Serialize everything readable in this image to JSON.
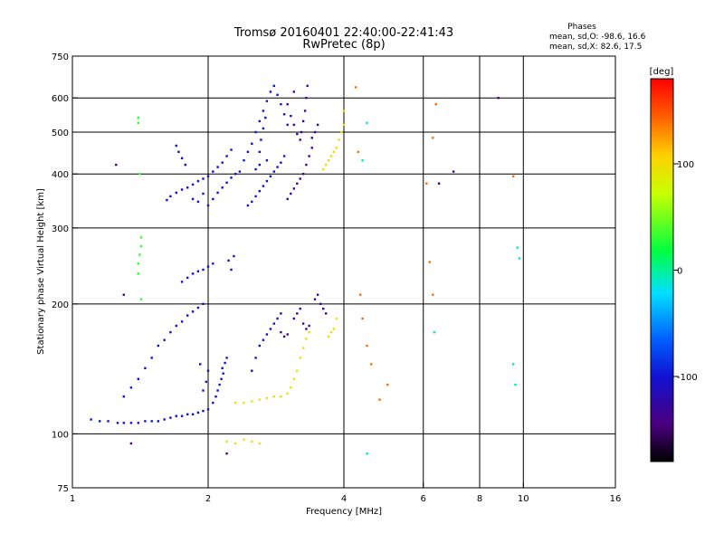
{
  "chart_data": {
    "type": "scatter",
    "title": "Tromsø 20160401 22:40:00-22:41:43",
    "subtitle": "RwPretec (8p)",
    "xlabel": "Frequency [MHz]",
    "ylabel": "Stationary phase Virtual Height [km]",
    "x_scale": "log",
    "y_scale": "log",
    "xlim": [
      1,
      16
    ],
    "ylim": [
      75,
      750
    ],
    "x_ticks": [
      1,
      2,
      4,
      6,
      8,
      10,
      16
    ],
    "x_gridlines": [
      2,
      4,
      6,
      8,
      10
    ],
    "y_ticks": [
      75,
      100,
      200,
      300,
      400,
      500,
      600,
      750
    ],
    "y_gridlines": [
      100,
      200,
      300,
      400,
      500,
      600
    ],
    "grid": true,
    "stats": {
      "heading": "Phases",
      "line_o": "mean, sd,O: -98.6, 16.6",
      "line_x": "mean, sd,X:  82.6, 17.5"
    },
    "colorbar": {
      "label": "[deg]",
      "range": [
        -180,
        180
      ],
      "ticks": [
        100,
        0,
        -100
      ]
    },
    "series": [
      {
        "color_deg": -100,
        "points": [
          [
            1.1,
            108
          ],
          [
            1.15,
            107
          ],
          [
            1.2,
            107
          ],
          [
            1.26,
            106
          ],
          [
            1.3,
            106
          ],
          [
            1.35,
            106
          ],
          [
            1.4,
            106
          ],
          [
            1.45,
            107
          ],
          [
            1.5,
            107
          ],
          [
            1.55,
            107
          ],
          [
            1.6,
            108
          ],
          [
            1.65,
            109
          ],
          [
            1.7,
            110
          ],
          [
            1.75,
            110
          ],
          [
            1.8,
            111
          ],
          [
            1.85,
            111
          ],
          [
            1.9,
            112
          ],
          [
            1.95,
            113
          ],
          [
            2.0,
            114
          ],
          [
            2.05,
            118
          ],
          [
            2.08,
            122
          ],
          [
            2.1,
            126
          ],
          [
            2.12,
            130
          ],
          [
            2.14,
            134
          ],
          [
            2.16,
            138
          ],
          [
            2.15,
            142
          ],
          [
            2.18,
            146
          ],
          [
            2.2,
            150
          ],
          [
            1.95,
            126
          ],
          [
            1.98,
            132
          ],
          [
            2.0,
            140
          ],
          [
            1.92,
            145
          ],
          [
            2.25,
            240
          ],
          [
            2.22,
            252
          ],
          [
            2.28,
            258
          ],
          [
            1.75,
            225
          ],
          [
            1.8,
            230
          ],
          [
            1.85,
            235
          ],
          [
            1.9,
            238
          ],
          [
            1.95,
            240
          ],
          [
            2.0,
            244
          ],
          [
            2.05,
            248
          ],
          [
            1.3,
            122
          ],
          [
            1.35,
            128
          ],
          [
            1.4,
            134
          ],
          [
            1.45,
            142
          ],
          [
            1.5,
            150
          ],
          [
            1.55,
            160
          ],
          [
            1.6,
            165
          ],
          [
            1.65,
            172
          ],
          [
            1.7,
            178
          ],
          [
            1.75,
            182
          ],
          [
            1.8,
            188
          ],
          [
            1.85,
            192
          ],
          [
            1.9,
            196
          ],
          [
            1.95,
            200
          ],
          [
            1.62,
            348
          ],
          [
            1.65,
            355
          ],
          [
            1.7,
            362
          ],
          [
            1.75,
            368
          ],
          [
            1.8,
            372
          ],
          [
            1.85,
            378
          ],
          [
            1.9,
            385
          ],
          [
            1.95,
            390
          ],
          [
            2.0,
            395
          ],
          [
            2.05,
            405
          ],
          [
            2.1,
            415
          ],
          [
            2.15,
            425
          ],
          [
            2.2,
            440
          ],
          [
            2.25,
            455
          ],
          [
            1.7,
            465
          ],
          [
            1.72,
            450
          ],
          [
            1.75,
            435
          ],
          [
            1.78,
            420
          ],
          [
            1.85,
            350
          ],
          [
            1.9,
            345
          ],
          [
            1.95,
            360
          ],
          [
            2.0,
            338
          ],
          [
            2.05,
            350
          ],
          [
            2.1,
            362
          ],
          [
            2.15,
            372
          ],
          [
            2.2,
            382
          ],
          [
            2.25,
            392
          ],
          [
            2.3,
            400
          ],
          [
            2.35,
            405
          ],
          [
            2.4,
            430
          ],
          [
            2.45,
            450
          ],
          [
            2.5,
            470
          ],
          [
            2.55,
            500
          ],
          [
            2.6,
            530
          ],
          [
            2.65,
            560
          ],
          [
            2.7,
            590
          ],
          [
            2.75,
            620
          ],
          [
            2.8,
            640
          ],
          [
            2.85,
            610
          ],
          [
            2.9,
            580
          ],
          [
            2.95,
            550
          ],
          [
            3.0,
            520
          ],
          [
            2.45,
            338
          ],
          [
            2.5,
            345
          ],
          [
            2.55,
            355
          ],
          [
            2.6,
            365
          ],
          [
            2.65,
            375
          ],
          [
            2.7,
            385
          ],
          [
            2.75,
            395
          ],
          [
            2.8,
            405
          ],
          [
            2.85,
            415
          ],
          [
            2.9,
            425
          ],
          [
            2.95,
            440
          ],
          [
            2.6,
            450
          ],
          [
            2.62,
            480
          ],
          [
            2.65,
            510
          ],
          [
            2.68,
            540
          ],
          [
            2.55,
            410
          ],
          [
            2.6,
            420
          ],
          [
            2.7,
            430
          ],
          [
            2.5,
            140
          ],
          [
            2.55,
            150
          ],
          [
            2.6,
            160
          ],
          [
            2.65,
            165
          ],
          [
            2.7,
            170
          ],
          [
            2.75,
            175
          ],
          [
            2.8,
            180
          ],
          [
            2.85,
            185
          ],
          [
            2.9,
            190
          ]
        ]
      },
      {
        "color_deg": -130,
        "points": [
          [
            3.0,
            350
          ],
          [
            3.05,
            360
          ],
          [
            3.1,
            370
          ],
          [
            3.15,
            380
          ],
          [
            3.2,
            390
          ],
          [
            3.25,
            400
          ],
          [
            3.3,
            420
          ],
          [
            3.35,
            440
          ],
          [
            3.4,
            460
          ],
          [
            3.2,
            480
          ],
          [
            3.22,
            500
          ],
          [
            3.25,
            530
          ],
          [
            3.28,
            560
          ],
          [
            3.3,
            600
          ],
          [
            3.32,
            640
          ],
          [
            3.1,
            620
          ],
          [
            3.0,
            580
          ],
          [
            3.05,
            545
          ],
          [
            3.1,
            520
          ],
          [
            3.15,
            495
          ],
          [
            3.4,
            485
          ],
          [
            3.45,
            500
          ],
          [
            3.5,
            520
          ],
          [
            3.45,
            205
          ],
          [
            3.5,
            210
          ],
          [
            3.55,
            200
          ],
          [
            3.6,
            195
          ],
          [
            3.65,
            190
          ],
          [
            3.1,
            185
          ],
          [
            3.15,
            190
          ],
          [
            3.2,
            195
          ],
          [
            3.25,
            180
          ],
          [
            3.3,
            175
          ],
          [
            3.35,
            178
          ],
          [
            3.0,
            170
          ],
          [
            2.95,
            168
          ],
          [
            2.9,
            172
          ]
        ]
      },
      {
        "color_deg": 95,
        "points": [
          [
            2.3,
            118
          ],
          [
            2.4,
            118
          ],
          [
            2.5,
            119
          ],
          [
            2.6,
            120
          ],
          [
            2.7,
            121
          ],
          [
            2.8,
            122
          ],
          [
            2.9,
            122
          ],
          [
            3.0,
            124
          ],
          [
            3.05,
            128
          ],
          [
            3.1,
            134
          ],
          [
            3.15,
            140
          ],
          [
            3.2,
            150
          ],
          [
            3.25,
            158
          ],
          [
            3.3,
            166
          ],
          [
            3.35,
            172
          ],
          [
            3.6,
            410
          ],
          [
            3.65,
            420
          ],
          [
            3.7,
            430
          ],
          [
            3.75,
            440
          ],
          [
            3.8,
            450
          ],
          [
            3.85,
            460
          ],
          [
            3.9,
            480
          ],
          [
            3.95,
            500
          ],
          [
            4.0,
            520
          ],
          [
            4.0,
            560
          ],
          [
            3.7,
            168
          ],
          [
            3.75,
            172
          ],
          [
            3.8,
            175
          ],
          [
            3.85,
            185
          ],
          [
            2.2,
            96
          ],
          [
            2.3,
            95
          ],
          [
            2.4,
            97
          ],
          [
            2.5,
            96
          ],
          [
            2.6,
            95
          ]
        ]
      },
      {
        "color_deg": 30,
        "points": [
          [
            1.4,
            235
          ],
          [
            1.4,
            248
          ],
          [
            1.41,
            260
          ],
          [
            1.42,
            272
          ],
          [
            1.42,
            285
          ],
          [
            1.4,
            540
          ],
          [
            1.4,
            525
          ],
          [
            1.41,
            400
          ],
          [
            1.42,
            205
          ]
        ]
      },
      {
        "color_deg": 140,
        "points": [
          [
            4.25,
            635
          ],
          [
            4.3,
            450
          ],
          [
            4.35,
            210
          ],
          [
            4.4,
            185
          ],
          [
            4.5,
            160
          ],
          [
            4.6,
            145
          ],
          [
            4.8,
            120
          ],
          [
            5.0,
            130
          ],
          [
            6.2,
            250
          ],
          [
            6.3,
            210
          ],
          [
            6.4,
            580
          ],
          [
            6.3,
            485
          ],
          [
            6.1,
            380
          ],
          [
            9.5,
            395
          ]
        ]
      },
      {
        "color_deg": -10,
        "points": [
          [
            4.5,
            525
          ],
          [
            4.4,
            430
          ],
          [
            4.5,
            90
          ],
          [
            6.35,
            172
          ],
          [
            9.5,
            145
          ],
          [
            9.6,
            130
          ],
          [
            9.7,
            270
          ],
          [
            9.8,
            255
          ]
        ]
      },
      {
        "color_deg": -145,
        "points": [
          [
            1.25,
            420
          ],
          [
            1.3,
            210
          ],
          [
            1.35,
            95
          ],
          [
            8.8,
            600
          ],
          [
            7.0,
            405
          ],
          [
            6.5,
            380
          ],
          [
            2.2,
            90
          ]
        ]
      }
    ]
  }
}
